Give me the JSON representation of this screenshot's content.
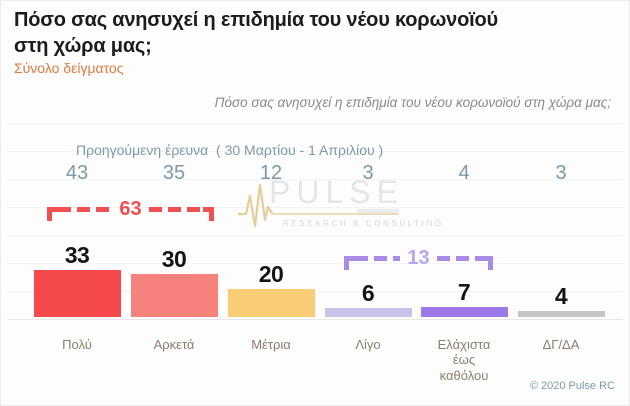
{
  "header": {
    "title_line1": "Πόσο σας ανησυχεί η επιδημία του νέου κορωνοϊού",
    "title_line2": "στη χώρα μας;",
    "subtitle": "Σύνολο δείγματος",
    "subtitle_color": "#e0793c"
  },
  "chart_data": {
    "type": "bar",
    "title": "Πόσο σας ανησυχεί η επιδημία του νέου κορωνοϊού στη χώρα μας;",
    "categories": [
      "Πολύ",
      "Αρκετά",
      "Μέτρια",
      "Λίγο",
      "Ελάχιστα έως καθόλου",
      "ΔΓ/ΔΑ"
    ],
    "series": [
      {
        "name": "current_survey",
        "values": [
          33,
          30,
          20,
          6,
          7,
          4
        ],
        "bar_colors": [
          "#f6494c",
          "#f5837b",
          "#f8cd75",
          "#c9c3ea",
          "#9b79e8",
          "#c4c4c4"
        ]
      },
      {
        "name": "previous_survey",
        "label": "Προηγούμενη έρευνα  ( 30 Μαρτίου - 1 Απριλίου )",
        "values": [
          43,
          35,
          12,
          3,
          4,
          3
        ],
        "color": "#7d99a8"
      }
    ],
    "annotations": [
      {
        "label": "63",
        "sum_of": [
          "Πολύ",
          "Αρκετά"
        ],
        "color": "#f0504f",
        "label_color": "#f0504f"
      },
      {
        "label": "13",
        "sum_of": [
          "Λίγο",
          "Ελάχιστα έως καθόλου"
        ],
        "color": "#a88ce8",
        "label_color": "#b7a6ec"
      }
    ],
    "value_label_color": "#141414",
    "grid": "horizontal-faint",
    "legend": "none"
  },
  "watermark": {
    "brand": "PULSE",
    "tagline": "RESEARCH & CONSULTING",
    "icon": "heartbeat-pulse-icon",
    "line_color": "#e5cd99"
  },
  "footer": {
    "copyright": "© 2020 Pulse RC",
    "color": "#7d99a8"
  }
}
